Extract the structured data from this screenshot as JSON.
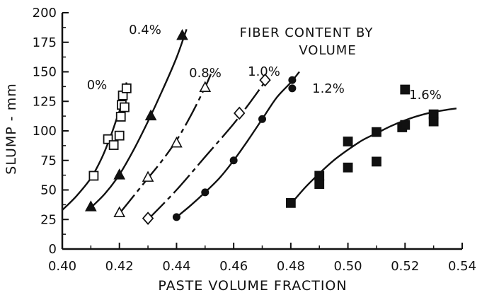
{
  "chart_data": {
    "type": "scatter",
    "title": "",
    "xlabel": "PASTE VOLUME FRACTION",
    "ylabel": "SLUMP - mm",
    "xlim": [
      0.4,
      0.54
    ],
    "ylim": [
      0,
      200
    ],
    "xticks": [
      0.4,
      0.42,
      0.44,
      0.46,
      0.48,
      0.5,
      0.52,
      0.54
    ],
    "xtick_labels": [
      "0.40",
      "0.42",
      "0.44",
      "0.46",
      "0.48",
      "0.50",
      "0.52",
      "0.54"
    ],
    "yticks": [
      0,
      25,
      50,
      75,
      100,
      125,
      150,
      175,
      200
    ],
    "ytick_labels": [
      "0",
      "25",
      "50",
      "75",
      "100",
      "125",
      "150",
      "175",
      "200"
    ],
    "grid": false,
    "annotation": [
      "FIBER CONTENT BY",
      "VOLUME"
    ],
    "series": [
      {
        "name": "0%",
        "marker": "open-square",
        "line": "solid",
        "points": [
          [
            0.411,
            62
          ],
          [
            0.416,
            93
          ],
          [
            0.418,
            88
          ],
          [
            0.42,
            96
          ],
          [
            0.4205,
            112
          ],
          [
            0.4208,
            122
          ],
          [
            0.4212,
            130
          ],
          [
            0.4218,
            120
          ],
          [
            0.4225,
            136
          ]
        ],
        "fit": [
          [
            0.4,
            33
          ],
          [
            0.405,
            45
          ],
          [
            0.41,
            60
          ],
          [
            0.414,
            78
          ],
          [
            0.417,
            96
          ],
          [
            0.419,
            110
          ],
          [
            0.421,
            124
          ],
          [
            0.4225,
            141
          ]
        ]
      },
      {
        "name": "0.4%",
        "marker": "filled-triangle",
        "line": "solid",
        "points": [
          [
            0.41,
            36
          ],
          [
            0.42,
            63
          ],
          [
            0.431,
            113
          ],
          [
            0.442,
            181
          ]
        ],
        "fit": [
          [
            0.41,
            35
          ],
          [
            0.415,
            47
          ],
          [
            0.42,
            63
          ],
          [
            0.425,
            84
          ],
          [
            0.43,
            108
          ],
          [
            0.435,
            134
          ],
          [
            0.44,
            162
          ],
          [
            0.4435,
            186
          ]
        ]
      },
      {
        "name": "0.8%",
        "marker": "open-triangle",
        "line": "dashed",
        "points": [
          [
            0.42,
            31
          ],
          [
            0.43,
            61
          ],
          [
            0.44,
            90
          ],
          [
            0.45,
            137
          ]
        ],
        "fit": [
          [
            0.42,
            30
          ],
          [
            0.425,
            45
          ],
          [
            0.43,
            60
          ],
          [
            0.435,
            75
          ],
          [
            0.44,
            92
          ],
          [
            0.445,
            113
          ],
          [
            0.45,
            137
          ],
          [
            0.452,
            148
          ]
        ]
      },
      {
        "name": "1.0%",
        "marker": "open-diamond",
        "line": "dashed",
        "points": [
          [
            0.43,
            26
          ],
          [
            0.462,
            115
          ],
          [
            0.471,
            143
          ]
        ],
        "fit": [
          [
            0.43,
            25
          ],
          [
            0.44,
            50
          ],
          [
            0.45,
            78
          ],
          [
            0.46,
            106
          ],
          [
            0.466,
            125
          ],
          [
            0.472,
            145
          ]
        ]
      },
      {
        "name": "1.2%",
        "marker": "filled-circle",
        "line": "solid",
        "points": [
          [
            0.44,
            27
          ],
          [
            0.45,
            48
          ],
          [
            0.46,
            75
          ],
          [
            0.47,
            110
          ],
          [
            0.4805,
            136
          ],
          [
            0.4805,
            143
          ]
        ],
        "fit": [
          [
            0.44,
            27
          ],
          [
            0.445,
            37
          ],
          [
            0.45,
            48
          ],
          [
            0.455,
            60
          ],
          [
            0.46,
            75
          ],
          [
            0.465,
            92
          ],
          [
            0.47,
            110
          ],
          [
            0.475,
            128
          ],
          [
            0.48,
            141
          ],
          [
            0.483,
            150
          ]
        ]
      },
      {
        "name": "1.6%",
        "marker": "filled-square",
        "line": "solid",
        "points": [
          [
            0.48,
            39
          ],
          [
            0.49,
            55
          ],
          [
            0.49,
            62
          ],
          [
            0.5,
            69
          ],
          [
            0.5,
            91
          ],
          [
            0.51,
            74
          ],
          [
            0.51,
            99
          ],
          [
            0.519,
            103
          ],
          [
            0.52,
            105
          ],
          [
            0.52,
            135
          ],
          [
            0.53,
            108
          ],
          [
            0.53,
            114
          ]
        ],
        "fit": [
          [
            0.48,
            38
          ],
          [
            0.485,
            52
          ],
          [
            0.49,
            64
          ],
          [
            0.495,
            75
          ],
          [
            0.5,
            84
          ],
          [
            0.505,
            92
          ],
          [
            0.51,
            98
          ],
          [
            0.515,
            104
          ],
          [
            0.52,
            109
          ],
          [
            0.525,
            113
          ],
          [
            0.53,
            116
          ],
          [
            0.535,
            118
          ],
          [
            0.538,
            119
          ]
        ]
      }
    ]
  }
}
